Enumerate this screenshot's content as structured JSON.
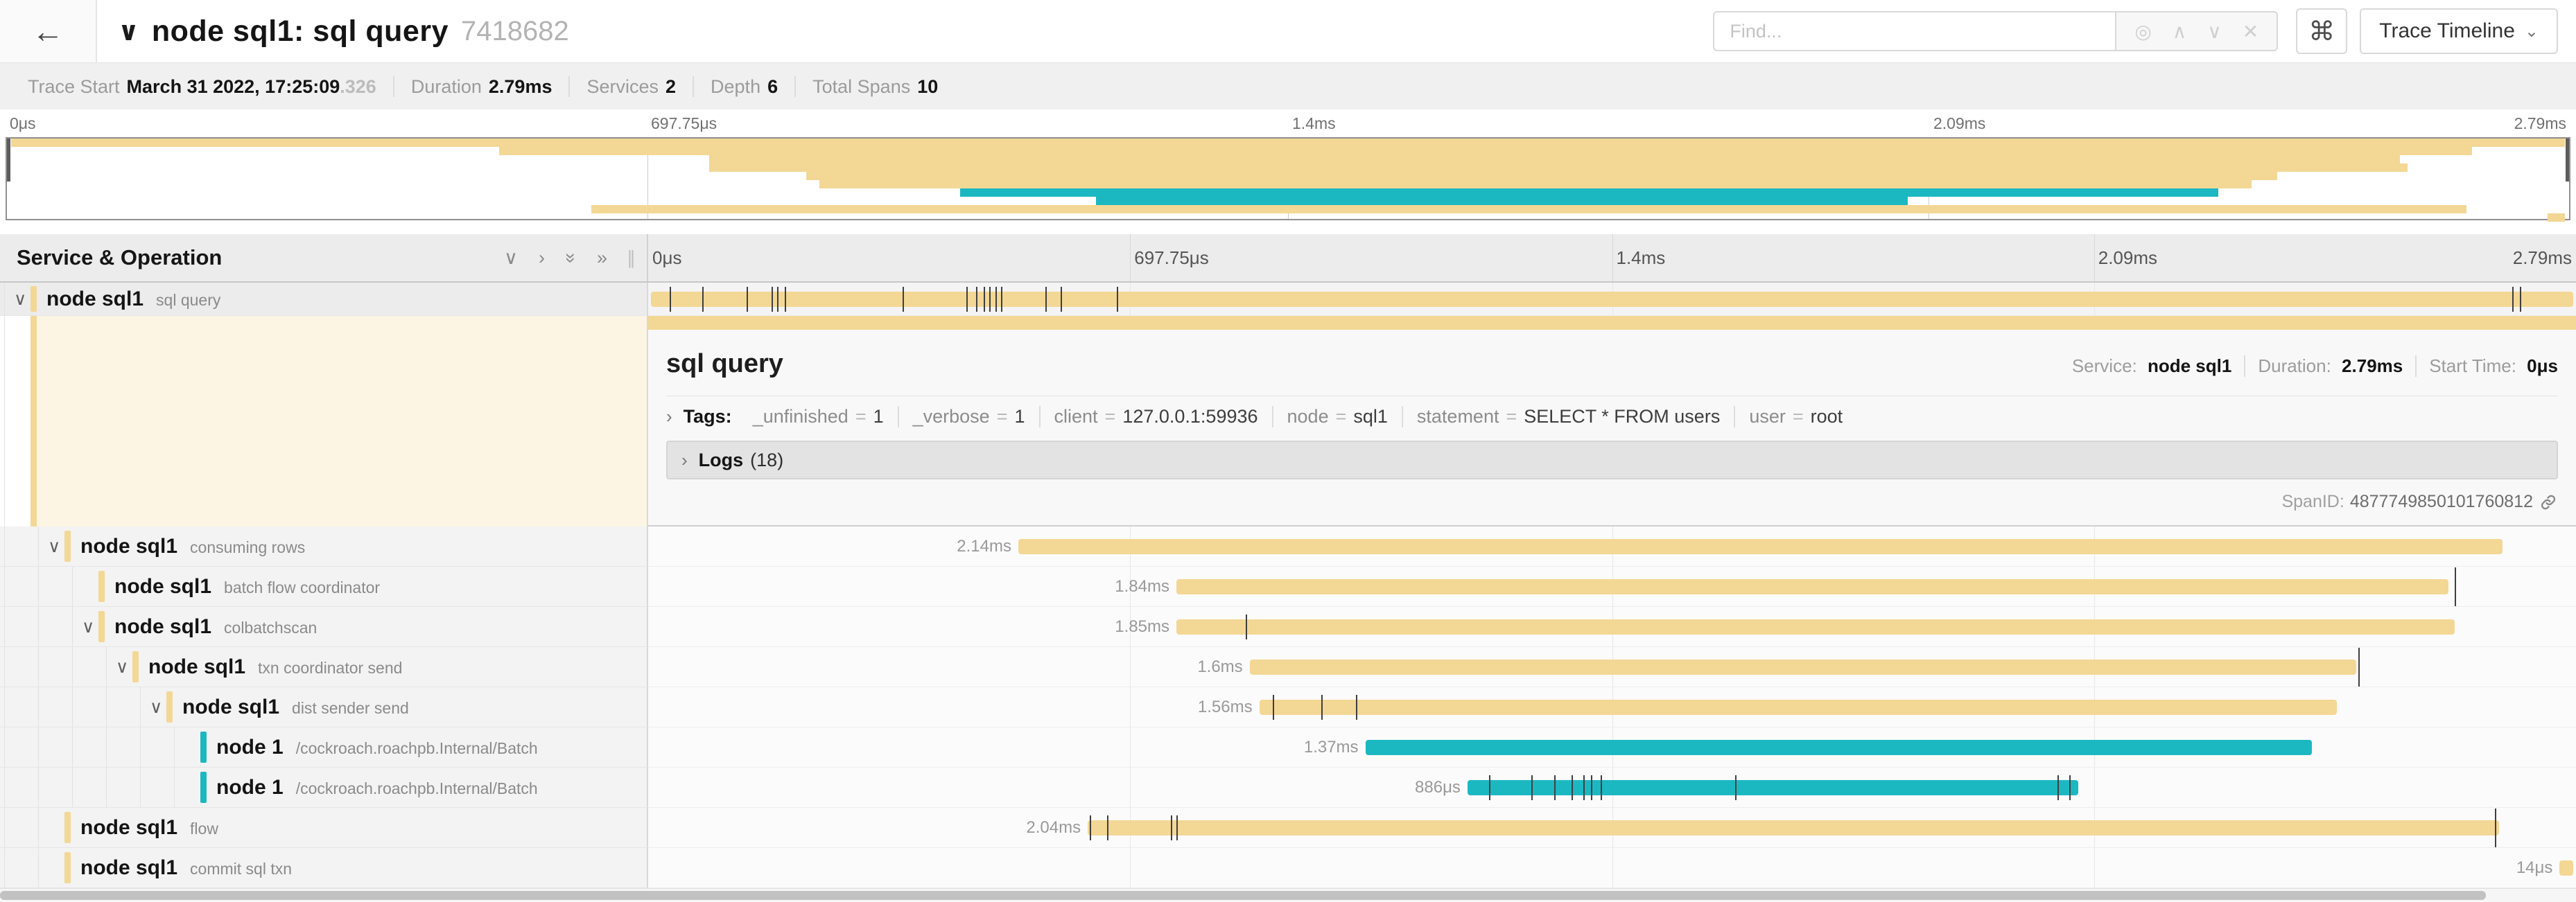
{
  "header": {
    "back_icon": "←",
    "collapse_icon": "∨",
    "title": "node sql1: sql query",
    "trace_id": "7418682",
    "find_placeholder": "Find...",
    "find_icons": [
      {
        "name": "locate-span-icon",
        "glyph": "◎"
      },
      {
        "name": "prev-result-icon",
        "glyph": "∧"
      },
      {
        "name": "next-result-icon",
        "glyph": "∨"
      },
      {
        "name": "clear-search-icon",
        "glyph": "✕"
      }
    ],
    "shortcut_icon": "⌘",
    "view_button_label": "Trace Timeline",
    "view_button_chevron": "⌄"
  },
  "summary": {
    "items": [
      {
        "label": "Trace Start",
        "value": "March 31 2022, 17:25:09",
        "suffix": ".326"
      },
      {
        "label": "Duration",
        "value": "2.79ms",
        "suffix": ""
      },
      {
        "label": "Services",
        "value": "2",
        "suffix": ""
      },
      {
        "label": "Depth",
        "value": "6",
        "suffix": ""
      },
      {
        "label": "Total Spans",
        "value": "10",
        "suffix": ""
      }
    ]
  },
  "ruler_ticks": [
    "0μs",
    "697.75μs",
    "1.4ms",
    "2.09ms",
    "2.79ms"
  ],
  "left_header": {
    "title": "Service & Operation",
    "icons": [
      {
        "name": "collapse-one-icon",
        "glyph": "∨",
        "rotate": false
      },
      {
        "name": "expand-one-icon",
        "glyph": "›",
        "rotate": false
      },
      {
        "name": "collapse-all-icon",
        "glyph": "»",
        "rotate": true
      },
      {
        "name": "expand-all-icon",
        "glyph": "»",
        "rotate": false
      }
    ],
    "grip": "∥"
  },
  "colors": {
    "tan": "#F3D794",
    "teal": "#1CB8C2",
    "cream": "#FCF5E4"
  },
  "detail": {
    "title": "sql query",
    "meta": [
      {
        "label": "Service:",
        "value": "node sql1"
      },
      {
        "label": "Duration:",
        "value": "2.79ms"
      },
      {
        "label": "Start Time:",
        "value": "0μs"
      }
    ],
    "tags_chevron": "›",
    "tags_label": "Tags:",
    "tags": [
      {
        "key": "_unfinished",
        "value": "1"
      },
      {
        "key": "_verbose",
        "value": "1"
      },
      {
        "key": "client",
        "value": "127.0.0.1:59936"
      },
      {
        "key": "node",
        "value": "sql1"
      },
      {
        "key": "statement",
        "value": "SELECT * FROM users"
      },
      {
        "key": "user",
        "value": "root"
      }
    ],
    "logs_chevron": "›",
    "logs_label": "Logs",
    "logs_count": "(18)",
    "span_id_label": "SpanID:",
    "span_id": "4877749850101760812"
  },
  "spans": [
    {
      "service": "node sql1",
      "operation": "sql query",
      "depth": 0,
      "expandable": true,
      "selected": true,
      "color": "tan",
      "start": 0.0015,
      "end": 0.9985,
      "duration_label": "",
      "ticks": [
        0.011,
        0.028,
        0.051,
        0.064,
        0.067,
        0.071,
        0.132,
        0.165,
        0.17,
        0.174,
        0.177,
        0.18,
        0.183,
        0.206,
        0.214,
        0.243,
        0.967,
        0.971
      ],
      "tall_ticks": []
    },
    {
      "service": "node sql1",
      "operation": "consuming rows",
      "depth": 1,
      "expandable": true,
      "selected": false,
      "color": "tan",
      "start": 0.192,
      "end": 0.962,
      "duration_label": "2.14ms",
      "ticks": [],
      "tall_ticks": []
    },
    {
      "service": "node sql1",
      "operation": "batch flow coordinator",
      "depth": 2,
      "expandable": false,
      "selected": false,
      "color": "tan",
      "start": 0.274,
      "end": 0.934,
      "duration_label": "1.84ms",
      "ticks": [],
      "tall_ticks": [
        0.937
      ]
    },
    {
      "service": "node sql1",
      "operation": "colbatchscan",
      "depth": 2,
      "expandable": true,
      "selected": false,
      "color": "tan",
      "start": 0.274,
      "end": 0.937,
      "duration_label": "1.85ms",
      "ticks": [
        0.31
      ],
      "tall_ticks": []
    },
    {
      "service": "node sql1",
      "operation": "txn coordinator send",
      "depth": 3,
      "expandable": true,
      "selected": false,
      "color": "tan",
      "start": 0.312,
      "end": 0.886,
      "duration_label": "1.6ms",
      "ticks": [],
      "tall_ticks": [
        0.887
      ]
    },
    {
      "service": "node sql1",
      "operation": "dist sender send",
      "depth": 4,
      "expandable": true,
      "selected": false,
      "color": "tan",
      "start": 0.317,
      "end": 0.876,
      "duration_label": "1.56ms",
      "ticks": [
        0.324,
        0.349,
        0.367
      ],
      "tall_ticks": []
    },
    {
      "service": "node 1",
      "operation": "/cockroach.roachpb.Internal/Batch",
      "depth": 5,
      "expandable": false,
      "selected": false,
      "color": "teal",
      "start": 0.372,
      "end": 0.863,
      "duration_label": "1.37ms",
      "ticks": [],
      "tall_ticks": []
    },
    {
      "service": "node 1",
      "operation": "/cockroach.roachpb.Internal/Batch",
      "depth": 5,
      "expandable": false,
      "selected": false,
      "color": "teal",
      "start": 0.425,
      "end": 0.742,
      "duration_label": "886μs",
      "ticks": [
        0.436,
        0.458,
        0.47,
        0.479,
        0.485,
        0.489,
        0.494,
        0.564,
        0.731,
        0.737
      ],
      "tall_ticks": []
    },
    {
      "service": "node sql1",
      "operation": "flow",
      "depth": 1,
      "expandable": false,
      "selected": false,
      "color": "tan",
      "start": 0.228,
      "end": 0.96,
      "duration_label": "2.04ms",
      "ticks": [
        0.229,
        0.238,
        0.271,
        0.274
      ],
      "tall_ticks": [
        0.958
      ]
    },
    {
      "service": "node sql1",
      "operation": "commit sql txn",
      "depth": 1,
      "expandable": false,
      "selected": false,
      "color": "tan",
      "start": 0.9915,
      "end": 0.9985,
      "duration_label": "14μs",
      "ticks": [],
      "tall_ticks": []
    }
  ]
}
